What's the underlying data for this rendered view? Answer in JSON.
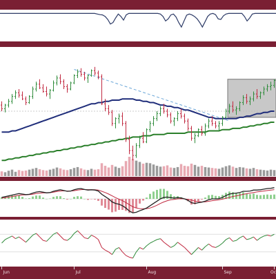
{
  "colors": {
    "frame": "#7a1f33",
    "panel": "#ffffff",
    "up_bar": "#2e8b3a",
    "down_bar": "#c0283f",
    "ma_fast": "#1f2d7a",
    "ma_slow": "#2a7f2a",
    "trend_line": "#6aa6d8",
    "highlight_box": "#c8c8c8",
    "vol_up": "#9a9a9a",
    "vol_down": "#e8a9b2",
    "macd_line": "#222222",
    "signal_line": "#c0283f",
    "hist_pos": "#8fd08f",
    "hist_neg": "#e08a96",
    "rsi_line": "#c0283f",
    "rsi_line_alt": "#2e8b3a",
    "top_line": "#2c3a66"
  },
  "chart_data": [
    {
      "type": "line",
      "name": "top-oscillator",
      "ylim": [
        0,
        100
      ],
      "values": [
        90,
        90,
        90,
        90,
        90,
        90,
        90,
        90,
        90,
        90,
        90,
        90,
        90,
        90,
        90,
        90,
        90,
        90,
        90,
        90,
        90,
        90,
        90,
        90,
        90,
        90,
        90,
        90,
        90,
        90,
        90,
        90,
        90,
        90,
        90,
        90,
        90,
        88,
        86,
        85,
        80,
        70,
        55,
        60,
        75,
        88,
        80,
        68,
        85,
        90,
        90,
        90,
        90,
        90,
        90,
        90,
        90,
        90,
        90,
        90,
        90,
        88,
        80,
        65,
        72,
        85,
        88,
        78,
        60,
        45,
        65,
        84,
        88,
        85,
        80,
        72,
        60,
        45,
        62,
        80,
        88,
        90,
        86,
        72,
        70,
        82,
        88,
        90,
        90,
        90,
        90,
        90,
        90,
        80,
        65,
        75,
        88,
        90,
        90,
        90,
        90,
        90,
        90,
        90,
        90,
        90
      ]
    },
    {
      "type": "candlestick",
      "name": "price",
      "x_ticks": [
        "Jun",
        "Jul",
        "Aug",
        "Sep",
        "Oct"
      ],
      "ylim": [
        0,
        100
      ],
      "ohlc": [
        [
          55,
          58,
          50,
          52
        ],
        [
          52,
          56,
          49,
          55
        ],
        [
          55,
          60,
          53,
          58
        ],
        [
          58,
          64,
          56,
          62
        ],
        [
          62,
          67,
          60,
          65
        ],
        [
          65,
          68,
          61,
          63
        ],
        [
          63,
          66,
          59,
          60
        ],
        [
          60,
          62,
          55,
          57
        ],
        [
          57,
          63,
          56,
          62
        ],
        [
          62,
          70,
          60,
          68
        ],
        [
          68,
          74,
          66,
          72
        ],
        [
          72,
          76,
          68,
          69
        ],
        [
          69,
          72,
          65,
          66
        ],
        [
          66,
          70,
          62,
          64
        ],
        [
          64,
          68,
          60,
          67
        ],
        [
          67,
          75,
          66,
          73
        ],
        [
          73,
          79,
          71,
          77
        ],
        [
          77,
          80,
          72,
          74
        ],
        [
          74,
          76,
          68,
          70
        ],
        [
          70,
          72,
          65,
          68
        ],
        [
          68,
          74,
          67,
          73
        ],
        [
          73,
          80,
          72,
          79
        ],
        [
          79,
          84,
          77,
          82
        ],
        [
          82,
          85,
          78,
          80
        ],
        [
          80,
          82,
          75,
          77
        ],
        [
          77,
          80,
          73,
          79
        ],
        [
          79,
          84,
          78,
          83
        ],
        [
          83,
          86,
          79,
          81
        ],
        [
          81,
          83,
          76,
          78
        ],
        [
          78,
          80,
          55,
          56
        ],
        [
          56,
          60,
          50,
          52
        ],
        [
          52,
          55,
          47,
          49
        ],
        [
          49,
          51,
          38,
          40
        ],
        [
          40,
          45,
          36,
          44
        ],
        [
          44,
          48,
          40,
          46
        ],
        [
          46,
          49,
          38,
          40
        ],
        [
          40,
          42,
          25,
          27
        ],
        [
          27,
          30,
          15,
          18
        ],
        [
          18,
          22,
          10,
          14
        ],
        [
          14,
          24,
          12,
          22
        ],
        [
          22,
          30,
          20,
          28
        ],
        [
          28,
          33,
          24,
          25
        ],
        [
          25,
          36,
          24,
          35
        ],
        [
          35,
          42,
          33,
          40
        ],
        [
          40,
          46,
          38,
          44
        ],
        [
          44,
          50,
          42,
          48
        ],
        [
          48,
          54,
          46,
          52
        ],
        [
          52,
          56,
          48,
          50
        ],
        [
          50,
          52,
          45,
          47
        ],
        [
          47,
          49,
          40,
          42
        ],
        [
          42,
          45,
          38,
          44
        ],
        [
          44,
          50,
          42,
          48
        ],
        [
          48,
          52,
          44,
          46
        ],
        [
          46,
          48,
          40,
          42
        ],
        [
          42,
          44,
          34,
          36
        ],
        [
          36,
          38,
          26,
          28
        ],
        [
          28,
          32,
          24,
          30
        ],
        [
          30,
          36,
          29,
          35
        ],
        [
          35,
          38,
          30,
          32
        ],
        [
          32,
          40,
          30,
          38
        ],
        [
          38,
          44,
          36,
          42
        ],
        [
          42,
          46,
          38,
          40
        ],
        [
          40,
          42,
          36,
          38
        ],
        [
          38,
          42,
          34,
          40
        ],
        [
          40,
          46,
          38,
          45
        ],
        [
          45,
          52,
          44,
          50
        ],
        [
          50,
          56,
          48,
          54
        ],
        [
          54,
          58,
          49,
          51
        ],
        [
          51,
          54,
          47,
          52
        ],
        [
          52,
          58,
          50,
          57
        ],
        [
          57,
          63,
          55,
          61
        ],
        [
          61,
          64,
          56,
          58
        ],
        [
          58,
          62,
          55,
          60
        ],
        [
          60,
          66,
          58,
          64
        ],
        [
          64,
          68,
          60,
          62
        ],
        [
          62,
          66,
          60,
          65
        ],
        [
          65,
          70,
          63,
          68
        ],
        [
          68,
          72,
          66,
          70
        ],
        [
          70,
          74,
          67,
          71
        ],
        [
          71,
          76,
          69,
          75
        ]
      ],
      "ma_fast": [
        33,
        33,
        33,
        34,
        34,
        35,
        36,
        37,
        38,
        39,
        40,
        41,
        42,
        43,
        44,
        45,
        46,
        47,
        48,
        49,
        50,
        51,
        52,
        53,
        54,
        55,
        56,
        56,
        57,
        57,
        58,
        58,
        59,
        59,
        59,
        60,
        60,
        60,
        60,
        59,
        59,
        58,
        58,
        57,
        57,
        56,
        55,
        55,
        54,
        54,
        53,
        53,
        52,
        51,
        51,
        50,
        49,
        48,
        47,
        46,
        45,
        45,
        44,
        44,
        44,
        44,
        44,
        44,
        44,
        45,
        45,
        46,
        46,
        47,
        48,
        48,
        49,
        49,
        50,
        50
      ],
      "ma_slow": [
        10,
        10,
        11,
        11,
        12,
        12,
        13,
        13,
        14,
        14,
        15,
        15,
        16,
        16,
        17,
        17,
        18,
        18,
        19,
        19,
        20,
        20,
        21,
        21,
        22,
        22,
        23,
        23,
        24,
        24,
        25,
        25,
        26,
        26,
        27,
        27,
        28,
        28,
        29,
        29,
        29,
        30,
        30,
        30,
        31,
        31,
        31,
        31,
        32,
        32,
        32,
        32,
        32,
        32,
        33,
        33,
        33,
        33,
        33,
        33,
        34,
        34,
        34,
        34,
        35,
        35,
        35,
        36,
        36,
        36,
        37,
        37,
        38,
        38,
        39,
        39,
        40,
        40,
        41,
        41
      ],
      "trend_line": {
        "from_bar": 21,
        "from_value": 84,
        "to_bar": 66,
        "to_value": 42
      },
      "highlight_range": {
        "from_bar": 66,
        "to_bar": 80,
        "low": 45,
        "high": 76
      },
      "reference_level": 50
    },
    {
      "type": "bar",
      "name": "volume",
      "values": [
        22,
        18,
        25,
        30,
        20,
        28,
        24,
        26,
        30,
        34,
        38,
        32,
        28,
        26,
        30,
        34,
        40,
        36,
        30,
        28,
        32,
        38,
        42,
        36,
        30,
        28,
        34,
        30,
        32,
        60,
        48,
        40,
        52,
        44,
        38,
        46,
        70,
        90,
        80,
        72,
        66,
        58,
        62,
        60,
        54,
        48,
        44,
        46,
        50,
        40,
        38,
        42,
        56,
        48,
        46,
        58,
        52,
        44,
        48,
        42,
        40,
        38,
        36,
        34,
        40,
        46,
        50,
        44,
        38,
        42,
        40,
        36,
        34,
        38,
        32,
        30,
        28,
        26,
        30,
        28
      ]
    },
    {
      "type": "line",
      "name": "macd",
      "ylim": [
        -1,
        1
      ],
      "macd": [
        0.1,
        0.15,
        0.2,
        0.25,
        0.3,
        0.35,
        0.32,
        0.28,
        0.3,
        0.38,
        0.45,
        0.48,
        0.44,
        0.4,
        0.42,
        0.5,
        0.56,
        0.6,
        0.55,
        0.5,
        0.52,
        0.6,
        0.66,
        0.68,
        0.62,
        0.58,
        0.6,
        0.58,
        0.52,
        0.3,
        0.15,
        0.0,
        -0.2,
        -0.3,
        -0.35,
        -0.45,
        -0.6,
        -0.8,
        -0.92,
        -0.88,
        -0.78,
        -0.7,
        -0.6,
        -0.45,
        -0.3,
        -0.15,
        0.0,
        0.1,
        0.12,
        0.08,
        0.05,
        0.08,
        0.06,
        0.0,
        -0.1,
        -0.25,
        -0.3,
        -0.25,
        -0.22,
        -0.15,
        -0.05,
        0.0,
        0.0,
        0.02,
        0.1,
        0.22,
        0.32,
        0.36,
        0.38,
        0.42,
        0.5,
        0.5,
        0.52,
        0.58,
        0.58,
        0.6,
        0.64,
        0.68,
        0.7,
        0.74
      ],
      "signal": [
        0.05,
        0.08,
        0.12,
        0.15,
        0.2,
        0.24,
        0.26,
        0.27,
        0.28,
        0.31,
        0.35,
        0.38,
        0.4,
        0.4,
        0.41,
        0.44,
        0.48,
        0.52,
        0.53,
        0.52,
        0.52,
        0.54,
        0.58,
        0.61,
        0.62,
        0.61,
        0.61,
        0.6,
        0.58,
        0.5,
        0.42,
        0.32,
        0.2,
        0.08,
        -0.02,
        -0.12,
        -0.24,
        -0.38,
        -0.52,
        -0.6,
        -0.64,
        -0.65,
        -0.64,
        -0.6,
        -0.52,
        -0.42,
        -0.3,
        -0.2,
        -0.12,
        -0.06,
        -0.03,
        0.0,
        0.01,
        0.0,
        -0.03,
        -0.08,
        -0.14,
        -0.18,
        -0.2,
        -0.19,
        -0.16,
        -0.12,
        -0.09,
        -0.06,
        -0.02,
        0.04,
        0.1,
        0.16,
        0.2,
        0.25,
        0.3,
        0.34,
        0.38,
        0.42,
        0.46,
        0.49,
        0.52,
        0.55,
        0.58,
        0.61
      ]
    },
    {
      "type": "line",
      "name": "rsi",
      "ylim": [
        0,
        100
      ],
      "reference_levels": [
        70,
        30
      ],
      "values": [
        50,
        58,
        62,
        66,
        60,
        64,
        58,
        52,
        60,
        68,
        72,
        64,
        56,
        54,
        62,
        70,
        74,
        66,
        58,
        56,
        62,
        72,
        78,
        70,
        62,
        60,
        68,
        64,
        58,
        40,
        34,
        30,
        24,
        36,
        40,
        30,
        22,
        18,
        16,
        30,
        40,
        36,
        44,
        50,
        54,
        58,
        60,
        52,
        46,
        40,
        44,
        52,
        46,
        40,
        32,
        24,
        32,
        40,
        34,
        42,
        48,
        42,
        40,
        44,
        50,
        58,
        62,
        54,
        56,
        62,
        66,
        58,
        60,
        64,
        56,
        62,
        66,
        68,
        66,
        70
      ]
    }
  ]
}
